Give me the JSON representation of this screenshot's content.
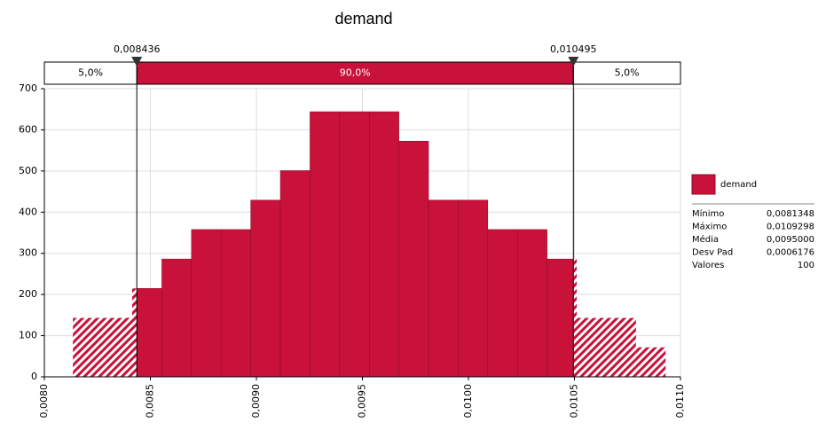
{
  "chart_data": {
    "type": "histogram",
    "title": "demand",
    "color": "#c8123a",
    "bins": [
      0.0081348,
      0.0082746,
      0.0084143,
      0.0085541,
      0.0086938,
      0.0088336,
      0.0089733,
      0.0091131,
      0.0092528,
      0.0093926,
      0.0095323,
      0.0096721,
      0.0098118,
      0.0099516,
      0.0100913,
      0.0102311,
      0.0103708,
      0.0105106,
      0.0106503,
      0.0107901,
      0.0109298
    ],
    "values": [
      143.1,
      143.1,
      214.7,
      286.2,
      357.8,
      357.8,
      429.3,
      500.9,
      644.0,
      644.0,
      644.0,
      572.5,
      429.3,
      429.3,
      357.8,
      357.8,
      286.2,
      143.1,
      143.1,
      71.6
    ],
    "xlim": [
      0.008,
      0.011
    ],
    "xticks": [
      {
        "value": 0.008,
        "label": "0,0080"
      },
      {
        "value": 0.0085,
        "label": "0,0085"
      },
      {
        "value": 0.009,
        "label": "0,0090"
      },
      {
        "value": 0.0095,
        "label": "0,0095"
      },
      {
        "value": 0.01,
        "label": "0,0100"
      },
      {
        "value": 0.0105,
        "label": "0,0105"
      },
      {
        "value": 0.011,
        "label": "0,0110"
      }
    ],
    "ylim": [
      0,
      700
    ],
    "yticks": [
      0,
      100,
      200,
      300,
      400,
      500,
      600,
      700
    ],
    "grid": true,
    "delimiters": [
      {
        "value": 0.008436,
        "label": "0,008436"
      },
      {
        "value": 0.010495,
        "label": "0,010495"
      }
    ],
    "regions": [
      "5,0%",
      "90,0%",
      "5,0%"
    ],
    "legend": {
      "name": "demand",
      "stats": [
        {
          "label": "Mínimo",
          "value": "0,0081348"
        },
        {
          "label": "Máximo",
          "value": "0,0109298"
        },
        {
          "label": "Média",
          "value": "0,0095000"
        },
        {
          "label": "Desv Pad",
          "value": "0,0006176"
        },
        {
          "label": "Valores",
          "value": "100"
        }
      ]
    }
  }
}
